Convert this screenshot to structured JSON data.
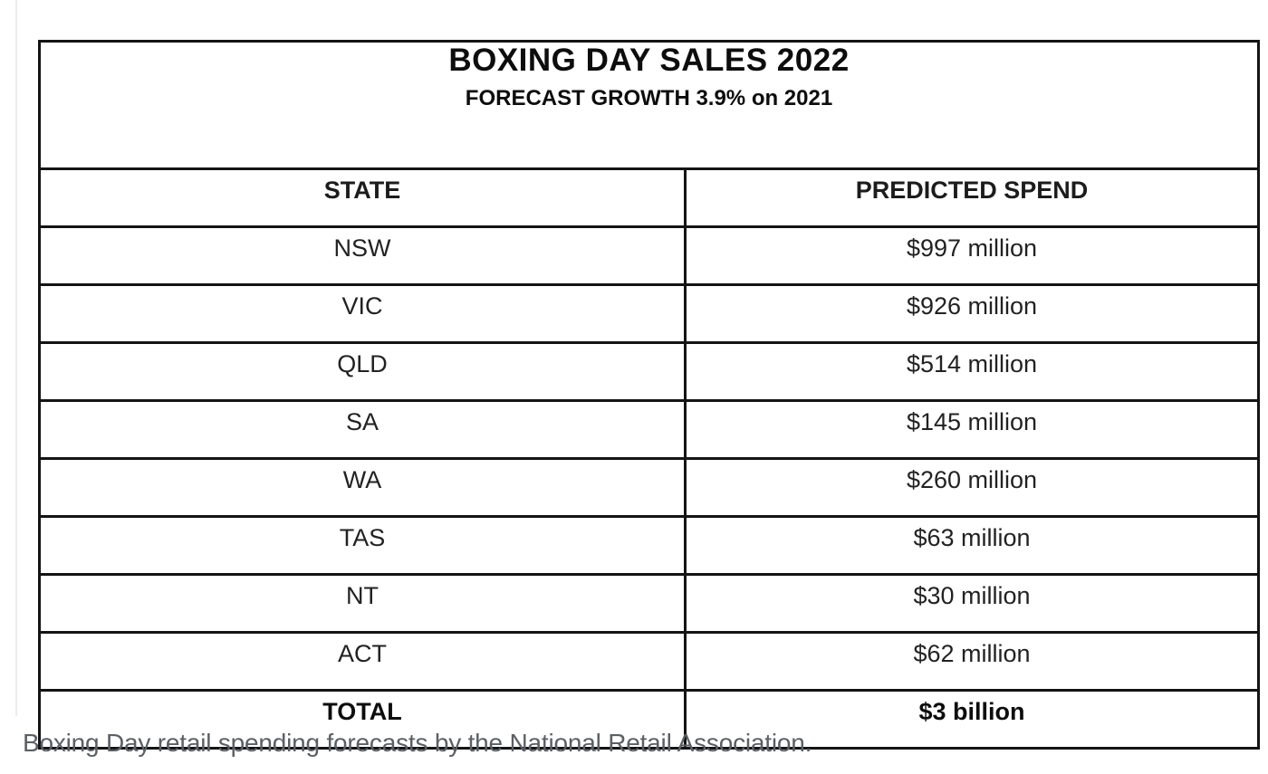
{
  "figure": {
    "title": "BOXING DAY SALES 2022",
    "subtitle": "FORECAST GROWTH 3.9% on 2021",
    "columns": [
      "STATE",
      "PREDICTED SPEND"
    ],
    "rows": [
      {
        "state": "NSW",
        "spend": "$997 million"
      },
      {
        "state": "VIC",
        "spend": "$926 million"
      },
      {
        "state": "QLD",
        "spend": "$514 million"
      },
      {
        "state": "SA",
        "spend": "$145 million"
      },
      {
        "state": "WA",
        "spend": "$260 million"
      },
      {
        "state": "TAS",
        "spend": "$63 million"
      },
      {
        "state": "NT",
        "spend": "$30 million"
      },
      {
        "state": "ACT",
        "spend": "$62 million"
      }
    ],
    "total": {
      "state": "TOTAL",
      "spend": "$3 billion"
    }
  },
  "caption": "Boxing Day retail spending forecasts by the National Retail Association.",
  "colors": {
    "table_border": "#141414",
    "table_text": "#1c1c1c",
    "caption_text": "#5b6065",
    "background": "#ffffff"
  },
  "chart_data": {
    "type": "table",
    "title": "BOXING DAY SALES 2022",
    "subtitle": "FORECAST GROWTH 3.9% on 2021",
    "columns": [
      "STATE",
      "PREDICTED SPEND"
    ],
    "rows": [
      [
        "NSW",
        "$997 million"
      ],
      [
        "VIC",
        "$926 million"
      ],
      [
        "QLD",
        "$514 million"
      ],
      [
        "SA",
        "$145 million"
      ],
      [
        "WA",
        "$260 million"
      ],
      [
        "TAS",
        "$63 million"
      ],
      [
        "NT",
        "$30 million"
      ],
      [
        "ACT",
        "$62 million"
      ],
      [
        "TOTAL",
        "$3 billion"
      ]
    ],
    "values_millions": {
      "NSW": 997,
      "VIC": 926,
      "QLD": 514,
      "SA": 145,
      "WA": 260,
      "TAS": 63,
      "NT": 30,
      "ACT": 62
    },
    "total_billions": 3,
    "forecast_growth_pct_on_2021": 3.9
  }
}
